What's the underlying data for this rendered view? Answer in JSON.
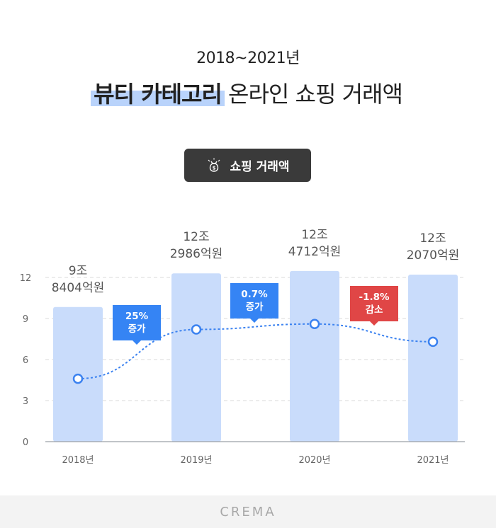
{
  "header": {
    "subtitle": "2018~2021년",
    "title_highlight": "뷰티 카테고리",
    "title_rest": "온라인 쇼핑 거래액"
  },
  "legend": {
    "label": "쇼핑 거래액",
    "icon": "money-bag-icon"
  },
  "footer": {
    "brand": "CREMA"
  },
  "colors": {
    "bar": "#c9dcfb",
    "line": "#3b82f0",
    "increase": "#3584f4",
    "decrease": "#e04646",
    "grid": "#d8d8d8"
  },
  "chart_data": {
    "type": "bar",
    "categories": [
      "2018년",
      "2019년",
      "2020년",
      "2021년"
    ],
    "yticks": [
      "0",
      "3",
      "6",
      "9",
      "12"
    ],
    "ylim": [
      0,
      12
    ],
    "bar_values": [
      9.8404,
      12.2986,
      12.4712,
      12.207
    ],
    "bar_labels": [
      [
        "9조",
        "8404억원"
      ],
      [
        "12조",
        "2986억원"
      ],
      [
        "12조",
        "4712억원"
      ],
      [
        "12조",
        "2070억원"
      ]
    ],
    "line_values": [
      4.6,
      8.2,
      8.6,
      7.3
    ],
    "callouts": [
      {
        "lines": [
          "25%",
          "증가"
        ],
        "kind": "increase"
      },
      {
        "lines": [
          "0.7%",
          "증가"
        ],
        "kind": "increase"
      },
      {
        "lines": [
          "-1.8%",
          "감소"
        ],
        "kind": "decrease"
      }
    ],
    "grid": true
  }
}
